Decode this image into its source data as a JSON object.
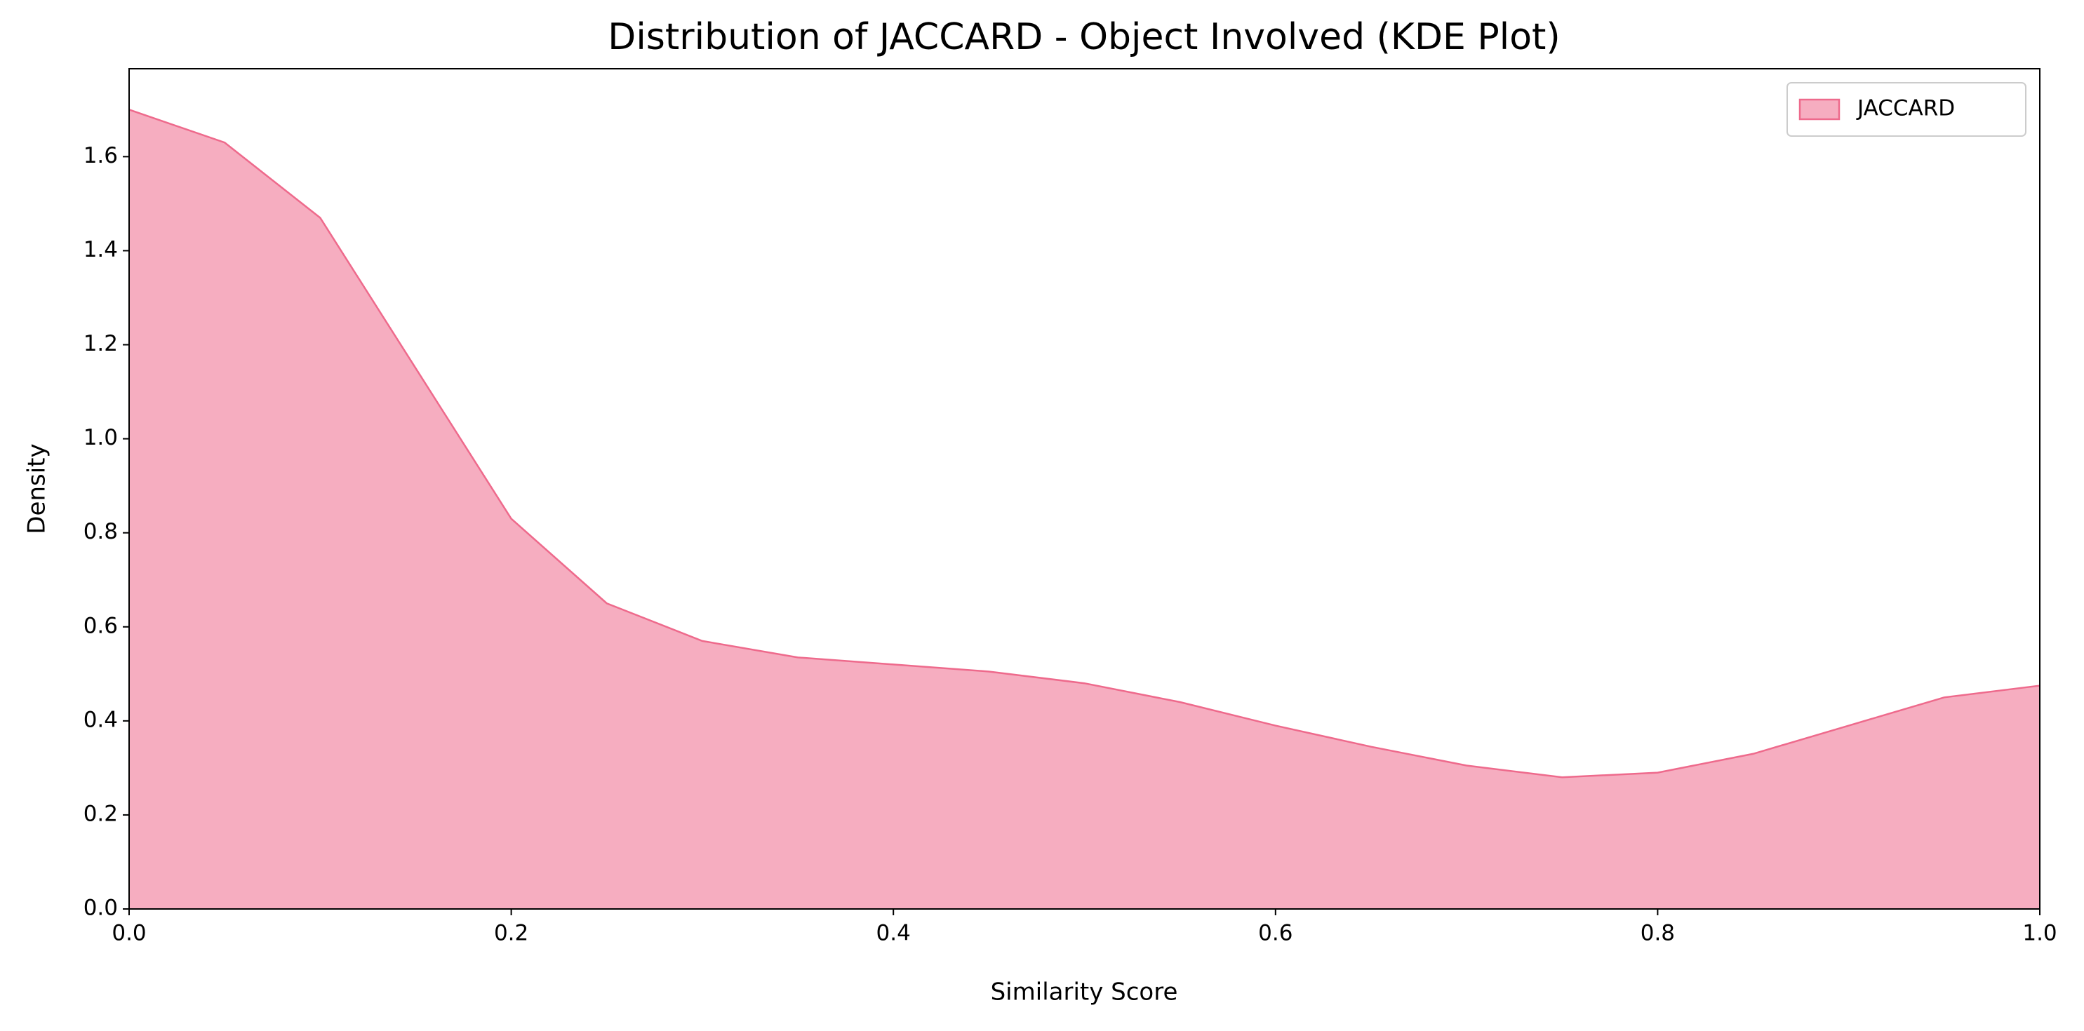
{
  "chart_data": {
    "type": "area",
    "title": "Distribution of JACCARD - Object Involved (KDE Plot)",
    "x_label": "Similarity Score",
    "y_label": "Density",
    "x": [
      0,
      0.05,
      0.1,
      0.15,
      0.2,
      0.25,
      0.3,
      0.35,
      0.4,
      0.45,
      0.5,
      0.55,
      0.6,
      0.65,
      0.7,
      0.75,
      0.8,
      0.85,
      0.9,
      0.95,
      1.0
    ],
    "series": [
      {
        "name": "JACCARD",
        "color": "#ee6a8c",
        "values": [
          1.7,
          1.63,
          1.47,
          1.15,
          0.83,
          0.65,
          0.57,
          0.535,
          0.52,
          0.505,
          0.48,
          0.44,
          0.39,
          0.345,
          0.305,
          0.28,
          0.29,
          0.33,
          0.39,
          0.45,
          0.475
        ]
      }
    ],
    "xlim": [
      0,
      1
    ],
    "xticks": [
      {
        "value": 0,
        "label": "0.0"
      },
      0.2,
      0.4,
      0.6,
      0.8,
      {
        "value": 1,
        "label": "1.0"
      }
    ],
    "ylim": [
      0,
      1.787
    ],
    "yticks": [
      {
        "value": 0,
        "label": "0.0"
      },
      0.2,
      0.4,
      0.6,
      0.8,
      {
        "value": 1,
        "label": "1.0"
      },
      1.2,
      1.4,
      1.6
    ],
    "grid": false,
    "legend": "upper right"
  }
}
